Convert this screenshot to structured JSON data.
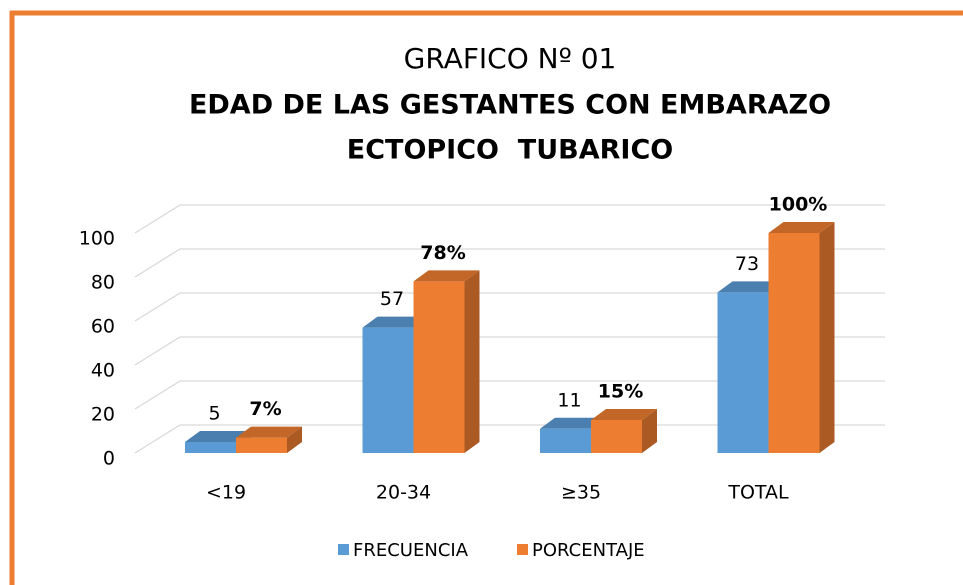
{
  "chart_data": {
    "type": "bar3d",
    "title": "GRAFICO Nº 01",
    "subtitle": [
      "EDAD DE LAS GESTANTES CON EMBARAZO",
      "ECTOPICO  TUBARICO"
    ],
    "categories": [
      "<19",
      "20-34",
      "≥35",
      "TOTAL"
    ],
    "series": [
      {
        "name": "FRECUENCIA",
        "color": "#5b9bd5",
        "values": [
          5,
          57,
          11,
          73
        ]
      },
      {
        "name": "PORCENTAJE",
        "color": "#ed7d31",
        "values": [
          7,
          78,
          15,
          100
        ],
        "value_labels": [
          "7%",
          "78%",
          "15%",
          "100%"
        ]
      }
    ],
    "ylim": [
      0,
      100
    ],
    "yticks": [
      0,
      20,
      40,
      60,
      80,
      100
    ],
    "grid": true,
    "legend": "bottom"
  }
}
